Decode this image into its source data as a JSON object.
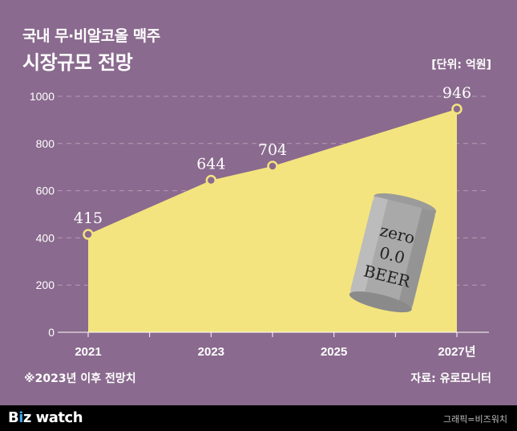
{
  "header": {
    "title_line1": "국내 무·비알코올 맥주",
    "title_line2": "시장규모 전망",
    "unit": "[단위: 억원]"
  },
  "note": "※2023년 이후 전망치",
  "source": "자료: 유로모니터",
  "footer": {
    "logo_b": "B",
    "logo_dot": "i",
    "logo_rest": "z watch",
    "credit": "그래픽=비즈워치"
  },
  "illustration": {
    "can_text": [
      "zero",
      "0.0",
      "BEER"
    ]
  },
  "colors": {
    "background": "#8a6a8e",
    "area_fill": "#f3e47f",
    "marker_stroke": "#f3e47f",
    "grid": "#b79bb5"
  },
  "chart_data": {
    "type": "area",
    "x": [
      2021,
      2023,
      2024,
      2027
    ],
    "values": [
      415,
      644,
      704,
      946
    ],
    "data_labels": [
      "415",
      "644",
      "704",
      "946"
    ],
    "x_tick_values": [
      2021,
      2023,
      2025,
      2027
    ],
    "x_tick_labels": [
      "2021",
      "2023",
      "2025",
      "2027년"
    ],
    "xlim": [
      2021,
      2027
    ],
    "y_tick_labels": [
      "0",
      "200",
      "400",
      "600",
      "800",
      "1000"
    ],
    "y_tick_values": [
      0,
      200,
      400,
      600,
      800,
      1000
    ],
    "ylim": [
      0,
      1000
    ],
    "grid": true
  }
}
